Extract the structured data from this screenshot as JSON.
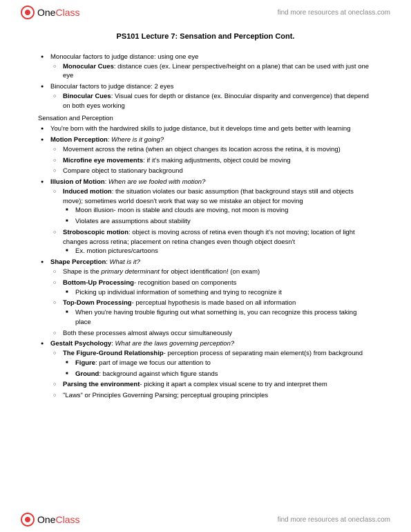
{
  "brand": {
    "name_part1": "One",
    "name_part2": "Class",
    "tagline": "find more resources at oneclass.com"
  },
  "document": {
    "title": "PS101 Lecture 7: Sensation and Perception Cont.",
    "section_label": "Sensation and Perception",
    "l1": [
      {
        "text": "Monocular factors to judge distance: using one eye",
        "l2": [
          {
            "bold": "Monocular Cues",
            "rest": ": distance cues (ex. Linear perspective/height on a plane) that can be used with just one eye"
          }
        ]
      },
      {
        "text": "Binocular factors to judge distance: 2 eyes",
        "l2": [
          {
            "bold": "Binocular Cues",
            "rest": ": Visual cues for depth or distance (ex. Binocular disparity and convergence) that depend on both eyes working"
          }
        ]
      }
    ],
    "l1b": [
      {
        "text": "You're born with the hardwired skills to judge distance, but it develops time and gets better with learning"
      },
      {
        "bold": "Motion Perception",
        "italic": "Where is it going?",
        "l2": [
          {
            "text": "Movement across the retina (when an object changes its location across the retina, it is moving)"
          },
          {
            "bold": "Microfine eye movements",
            "rest": ": if it's making adjustments, object could be moving"
          },
          {
            "text": "Compare object to stationary background"
          }
        ]
      },
      {
        "bold": "Illusion of Motion",
        "italic": "When are we fooled with motion?",
        "l2": [
          {
            "bold": "Induced motion",
            "rest": ": the situation violates our basic assumption (that background stays still and objects move); sometimes world doesn't work that way so we mistake an object for moving",
            "l3": [
              {
                "text": "Moon illusion- moon is stable and clouds are moving, not moon is moving"
              },
              {
                "text": "Violates are assumptions about stability"
              }
            ]
          },
          {
            "bold": "Stroboscopic motion",
            "rest": ": object is moving across of retina even though it's not moving; location of light changes across retina; placement on retina changes even though object doesn't",
            "l3": [
              {
                "text": "Ex. motion pictures/cartoons"
              }
            ]
          }
        ]
      },
      {
        "bold": "Shape Perception",
        "italic": "What is it?",
        "l2": [
          {
            "pre": "Shape is the ",
            "italic": "primary determinant",
            "rest": " for object identification! (on exam)"
          },
          {
            "bold": "Bottom-Up Processing",
            "rest": "- recognition based on components",
            "l3": [
              {
                "text": "Picking up individual information of something and trying to recognize it"
              }
            ]
          },
          {
            "bold": "Top-Down Processing",
            "rest": "- perceptual hypothesis is made based on all information",
            "l3": [
              {
                "text": "When you're having trouble figuring out what something is, you can recognize this process taking place"
              }
            ]
          },
          {
            "text": "Both these processes almost always occur simultaneously"
          }
        ]
      },
      {
        "bold": "Gestalt Psychology",
        "italic": "What are the laws governing perception?",
        "l2": [
          {
            "bold": "The Figure-Ground Relationship",
            "rest": "- perception process of separating main element(s) from background",
            "l3": [
              {
                "bold": "Figure",
                "rest": ": part of image we focus our attention to"
              },
              {
                "bold": "Ground",
                "rest": ": background against which figure stands"
              }
            ]
          },
          {
            "bold": "Parsing the environment",
            "rest": "- picking it apart a complex visual scene to try and interpret them"
          },
          {
            "text": "\"Laws\" or Principles Governing Parsing; perceptual grouping principles"
          }
        ]
      }
    ]
  }
}
